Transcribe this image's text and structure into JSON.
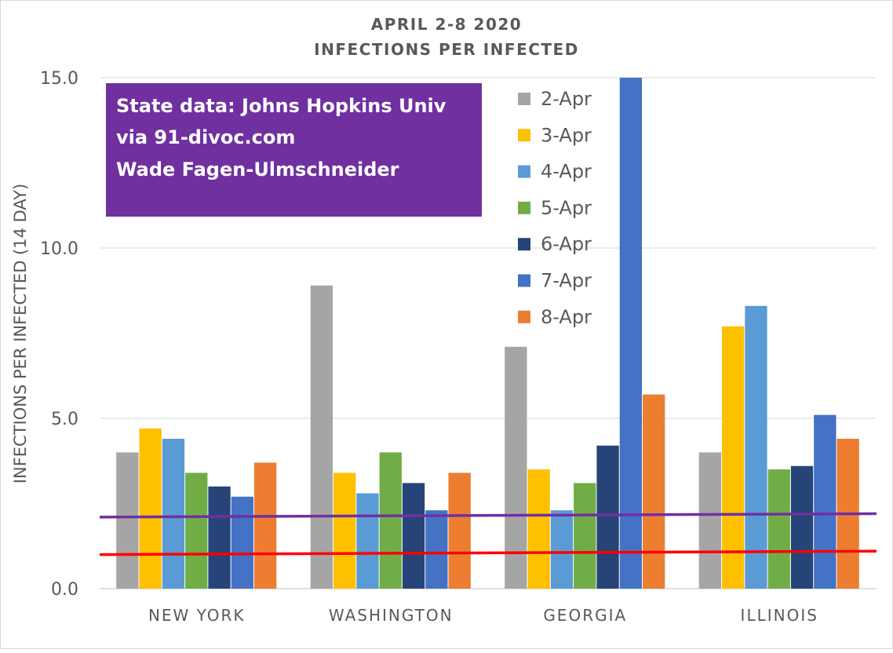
{
  "chart_data": {
    "type": "bar",
    "title": "APRIL 2-8 2020",
    "subtitle": "INFECTIONS PER INFECTED",
    "xlabel": "",
    "ylabel": "INFECTIONS PER INFECTED (14 DAY)",
    "ylim": [
      0,
      15
    ],
    "yticks": [
      "0.0",
      "5.0",
      "10.0",
      "15.0"
    ],
    "grid": true,
    "legend_position": "top-right",
    "categories": [
      "NEW YORK",
      "WASHINGTON",
      "GEORGIA",
      "ILLINOIS"
    ],
    "series": [
      {
        "name": "2-Apr",
        "color": "#a5a5a5",
        "values": [
          4.0,
          8.9,
          7.1,
          4.0
        ]
      },
      {
        "name": "3-Apr",
        "color": "#ffc000",
        "values": [
          4.7,
          3.4,
          3.5,
          7.7
        ]
      },
      {
        "name": "4-Apr",
        "color": "#5b9bd5",
        "values": [
          4.4,
          2.8,
          2.3,
          8.3
        ]
      },
      {
        "name": "5-Apr",
        "color": "#70ad47",
        "values": [
          3.4,
          4.0,
          3.1,
          3.5
        ]
      },
      {
        "name": "6-Apr",
        "color": "#264478",
        "values": [
          3.0,
          3.1,
          4.2,
          3.6
        ]
      },
      {
        "name": "7-Apr",
        "color": "#4472c4",
        "values": [
          2.7,
          2.3,
          15.0,
          5.1
        ]
      },
      {
        "name": "8-Apr",
        "color": "#ed7d31",
        "values": [
          3.7,
          3.4,
          5.7,
          4.4
        ]
      }
    ],
    "reference_lines": [
      {
        "color": "#7030a0",
        "start": 2.1,
        "end": 2.2
      },
      {
        "color": "#ff0000",
        "start": 1.0,
        "end": 1.1
      }
    ],
    "annotation": {
      "lines": [
        "State data: Johns Hopkins Univ",
        "via 91-divoc.com",
        "Wade Fagen-Ulmschneider"
      ],
      "background": "#7030a0",
      "text_color": "#ffffff"
    }
  }
}
